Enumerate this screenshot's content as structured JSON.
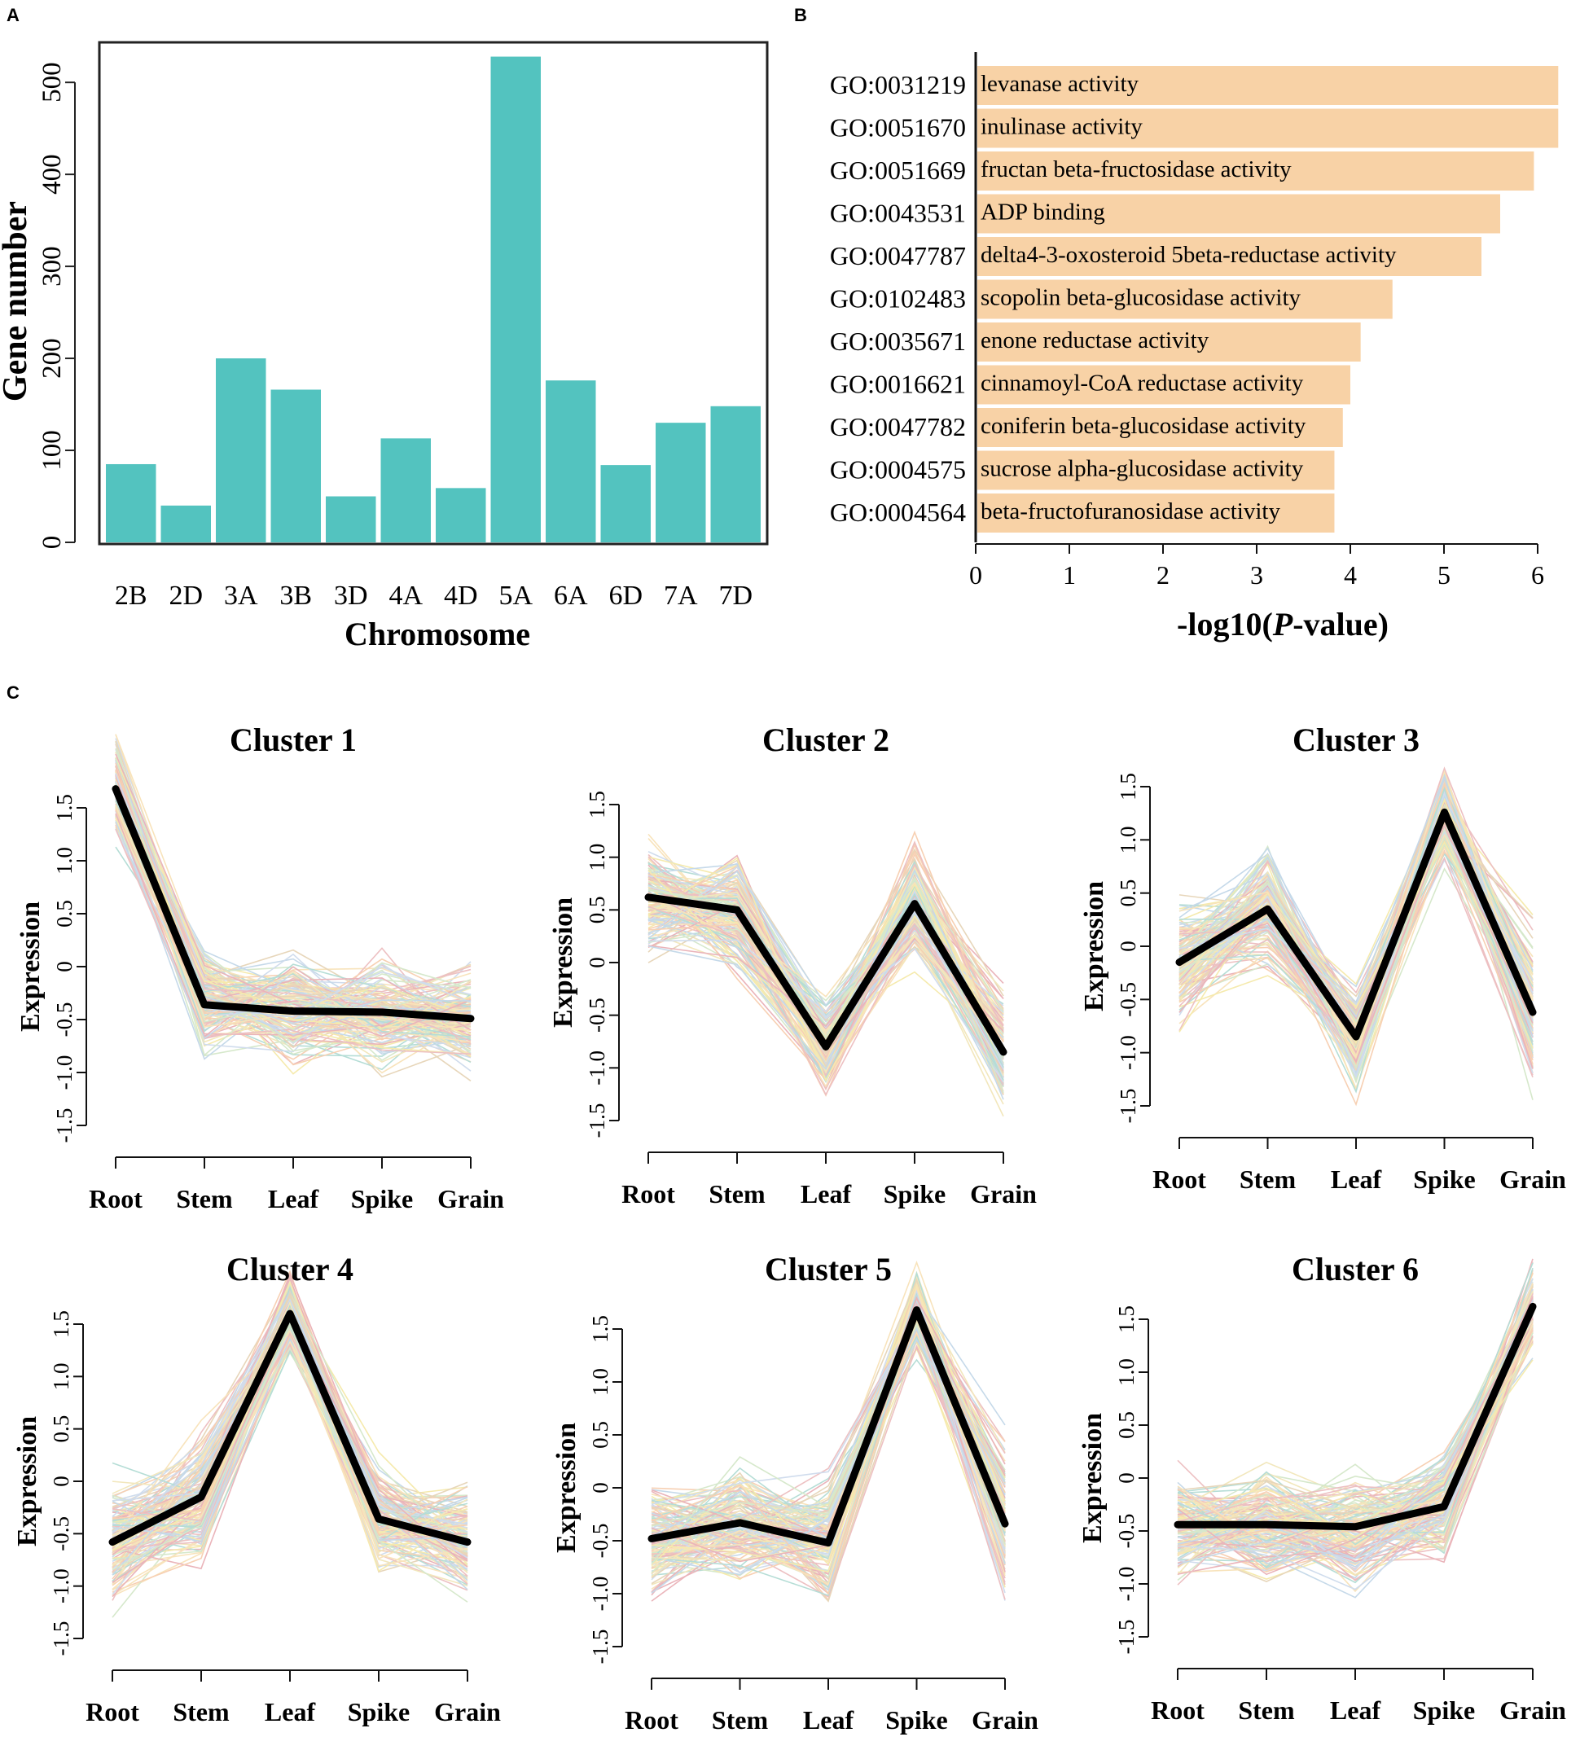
{
  "panel_labels": {
    "a": "A",
    "b": "B",
    "c": "C"
  },
  "colors": {
    "bar_a": "#53c3bf",
    "bar_b": "#f8d2a6",
    "mean_line": "#000000",
    "profile_palette": [
      "#f4e79f",
      "#f7dfb0",
      "#f6c8a6",
      "#eab6b8",
      "#e7a7ae",
      "#c8d7ea",
      "#bcd3e6",
      "#cfe5c3",
      "#a9d8cf",
      "#f0e3b1",
      "#e3cfae"
    ]
  },
  "chart_data": [
    {
      "id": "A",
      "type": "bar",
      "title": "",
      "xlabel": "Chromosome",
      "ylabel": "Gene number",
      "categories": [
        "2B",
        "2D",
        "3A",
        "3B",
        "3D",
        "4A",
        "4D",
        "5A",
        "6A",
        "6D",
        "7A",
        "7D"
      ],
      "values": [
        85,
        40,
        200,
        166,
        50,
        113,
        59,
        528,
        176,
        84,
        130,
        148
      ],
      "ylim": [
        0,
        540
      ],
      "yticks": [
        0,
        100,
        200,
        300,
        400,
        500
      ],
      "legend": "none"
    },
    {
      "id": "B",
      "type": "bar",
      "orientation": "horizontal",
      "xlabel": "-log10(",
      "xlabel_italic": "P",
      "xlabel_suffix": "-value)",
      "xlim": [
        0,
        6.3
      ],
      "xticks": [
        0,
        1,
        2,
        3,
        4,
        5,
        6
      ],
      "categories": [
        {
          "id": "GO:0031219",
          "term": "levanase activity",
          "value": 6.22
        },
        {
          "id": "GO:0051670",
          "term": "inulinase activity",
          "value": 6.22
        },
        {
          "id": "GO:0051669",
          "term": "fructan beta-fructosidase activity",
          "value": 5.96
        },
        {
          "id": "GO:0043531",
          "term": "ADP binding",
          "value": 5.6
        },
        {
          "id": "GO:0047787",
          "term": "delta4-3-oxosteroid 5beta-reductase activity",
          "value": 5.4
        },
        {
          "id": "GO:0102483",
          "term": "scopolin beta-glucosidase activity",
          "value": 4.45
        },
        {
          "id": "GO:0035671",
          "term": "enone reductase activity",
          "value": 4.11
        },
        {
          "id": "GO:0016621",
          "term": "cinnamoyl-CoA reductase activity",
          "value": 4.0
        },
        {
          "id": "GO:0047782",
          "term": "coniferin beta-glucosidase activity",
          "value": 3.92
        },
        {
          "id": "GO:0004575",
          "term": "sucrose alpha-glucosidase activity",
          "value": 3.83
        },
        {
          "id": "GO:0004564",
          "term": "beta-fructofuranosidase activity",
          "value": 3.83
        }
      ]
    },
    {
      "id": "C",
      "type": "line",
      "ylabel": "Expression",
      "x": [
        "Root",
        "Stem",
        "Leaf",
        "Spike",
        "Grain"
      ],
      "ylim": [
        -1.5,
        1.5
      ],
      "yticks": [
        "-1.5",
        "-1.0",
        "-0.5",
        "0",
        "0.5",
        "1.0",
        "1.5"
      ],
      "clusters": [
        {
          "title": "Cluster 1",
          "mean": [
            1.68,
            -0.36,
            -0.42,
            -0.43,
            -0.49
          ],
          "spread": [
            0.4,
            0.45,
            0.45,
            0.45,
            0.45
          ]
        },
        {
          "title": "Cluster 2",
          "mean": [
            0.62,
            0.5,
            -0.8,
            0.56,
            -0.85
          ],
          "spread": [
            0.5,
            0.5,
            0.45,
            0.5,
            0.5
          ]
        },
        {
          "title": "Cluster 3",
          "mean": [
            -0.15,
            0.35,
            -0.85,
            1.26,
            -0.62
          ],
          "spread": [
            0.5,
            0.5,
            0.45,
            0.4,
            0.6
          ]
        },
        {
          "title": "Cluster 4",
          "mean": [
            -0.58,
            -0.15,
            1.6,
            -0.36,
            -0.58
          ],
          "spread": [
            0.55,
            0.6,
            0.35,
            0.45,
            0.5
          ]
        },
        {
          "title": "Cluster 5",
          "mean": [
            -0.48,
            -0.33,
            -0.52,
            1.68,
            -0.34
          ],
          "spread": [
            0.5,
            0.45,
            0.5,
            0.3,
            0.6
          ]
        },
        {
          "title": "Cluster 6",
          "mean": [
            -0.44,
            -0.44,
            -0.46,
            -0.27,
            1.62
          ],
          "spread": [
            0.5,
            0.5,
            0.5,
            0.5,
            0.35
          ]
        }
      ]
    }
  ]
}
